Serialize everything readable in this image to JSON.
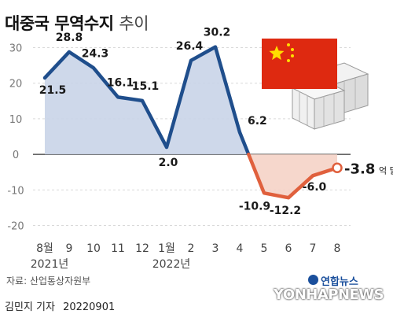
{
  "header": {
    "title": "대중국 무역수지",
    "title_suffix": "추이"
  },
  "chart_data": {
    "type": "line",
    "title": "대중국 무역수지 추이",
    "unit_label": "억 달러",
    "categories": [
      "8월",
      "9",
      "10",
      "11",
      "12",
      "1월",
      "2",
      "3",
      "4",
      "5",
      "6",
      "7",
      "8"
    ],
    "year_labels": [
      {
        "category_index": 0,
        "text": "2021년"
      },
      {
        "category_index": 5,
        "text": "2022년"
      }
    ],
    "yticks": [
      30,
      20,
      10,
      0,
      -10,
      -20
    ],
    "ylim": [
      -23,
      33
    ],
    "values": [
      21.5,
      28.8,
      24.3,
      16.1,
      15.1,
      2.0,
      26.4,
      30.2,
      6.2,
      -10.9,
      -12.2,
      -6.0,
      -3.8
    ],
    "value_labels": [
      "21.5",
      "28.8",
      "24.3",
      "16.1",
      "15.1",
      "2.0",
      "26.4",
      "30.2",
      "6.2",
      "-10.9",
      "-12.2",
      "-6.0",
      "-3.8"
    ],
    "colors": {
      "positive_line": "#1f4e8c",
      "positive_fill": "#c9d4e8",
      "negative_line": "#e0603d",
      "negative_fill": "#f5d3c6",
      "grid": "#d9d9d9"
    },
    "grid": true
  },
  "illustration": {
    "flag_icon": "china-flag-icon",
    "boxes_icon": "cargo-boxes-icon",
    "flag_red": "#de2910",
    "flag_star": "#ffde00"
  },
  "footer": {
    "source": "자료: 산업통상자원부",
    "author": "김민지 기자",
    "date": "20220901",
    "agency_kr": "연합뉴스",
    "agency_en": "YONHAPNEWS"
  }
}
